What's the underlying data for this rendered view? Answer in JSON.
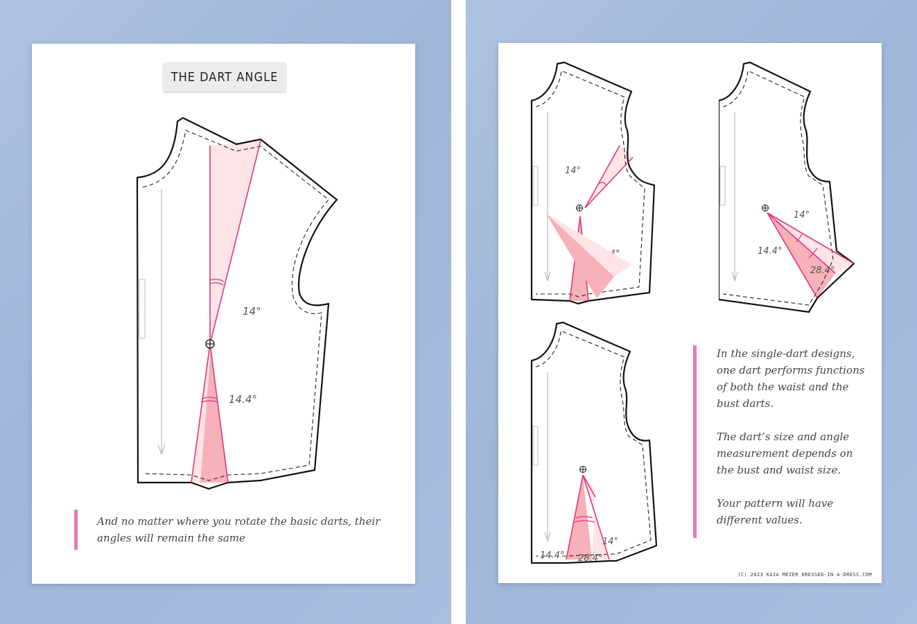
{
  "left_sheet": {
    "title": "THE DART ANGLE",
    "angle_top": "14°",
    "angle_bottom": "14.4°",
    "quote": "And no matter where you rotate the basic darts, their angles will remain the same"
  },
  "right_sheet": {
    "fig_a": {
      "angle_top": "14°",
      "angle_bottom": "14.4°"
    },
    "fig_b": {
      "angle_a": "14°",
      "angle_b": "14.4°",
      "angle_total": "28.4°"
    },
    "fig_c": {
      "angle_a": "14°",
      "angle_b": "14.4°",
      "angle_total": "28.4°"
    },
    "notes": [
      "In the single-dart designs, one dart performs functions of both the waist and the bust darts.",
      "The dart’s size and angle measurement depends on the bust and waist size.",
      "Your pattern will have different values."
    ],
    "copyright": "(C) 2023 KAIA MEIER  DRESSED-IN-A-DRESS.COM"
  },
  "colors": {
    "background": "#a9bfe0",
    "dart_light": "#fde4e6",
    "dart_dark": "#f7b1b8",
    "dart_edge": "#e0357a",
    "quote_bar": "#e879b8"
  }
}
